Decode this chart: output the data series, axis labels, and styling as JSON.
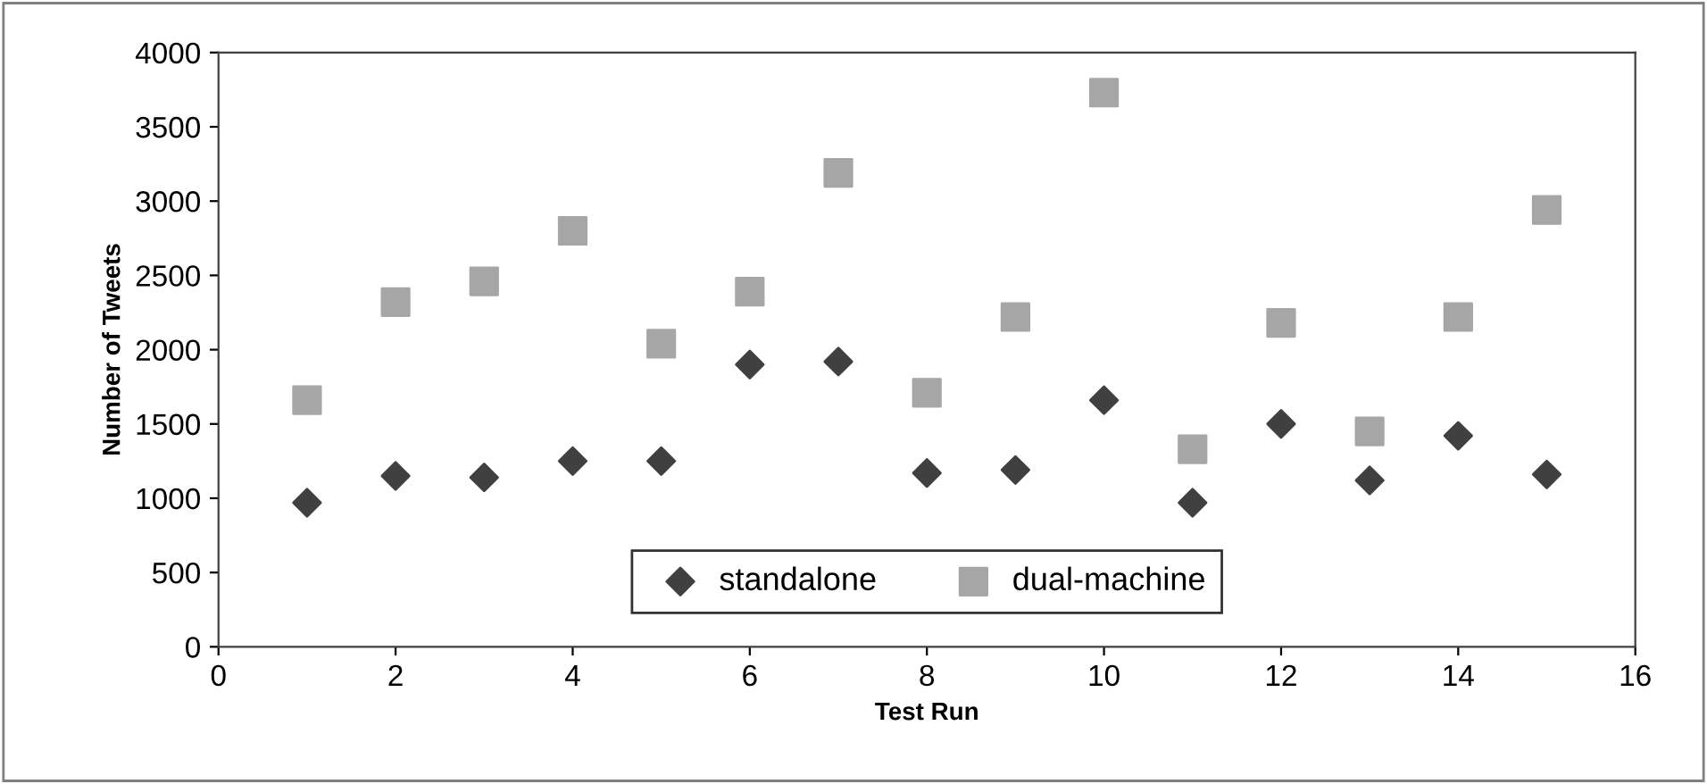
{
  "chart_data": {
    "type": "scatter",
    "xlabel": "Test Run",
    "ylabel": "Number of Tweets",
    "x": [
      1,
      2,
      3,
      4,
      5,
      6,
      7,
      8,
      9,
      10,
      11,
      12,
      13,
      14,
      15
    ],
    "series": [
      {
        "name": "standalone",
        "color": "#404040",
        "marker": "diamond",
        "values": [
          970,
          1150,
          1140,
          1250,
          1250,
          1900,
          1920,
          1170,
          1190,
          1660,
          970,
          1500,
          1120,
          1420,
          1160
        ]
      },
      {
        "name": "dual-machine",
        "color": "#a6a6a6",
        "marker": "square",
        "values": [
          1660,
          2320,
          2460,
          2800,
          2040,
          2390,
          3190,
          1710,
          2220,
          3730,
          1330,
          2180,
          1450,
          2220,
          2940
        ]
      }
    ],
    "xlim": [
      0,
      16
    ],
    "xticks": [
      0,
      2,
      4,
      6,
      8,
      10,
      12,
      14,
      16
    ],
    "ylim": [
      0,
      4000
    ],
    "yticks": [
      0,
      500,
      1000,
      1500,
      2000,
      2500,
      3000,
      3500,
      4000
    ],
    "grid": false,
    "legend": "bottom"
  }
}
